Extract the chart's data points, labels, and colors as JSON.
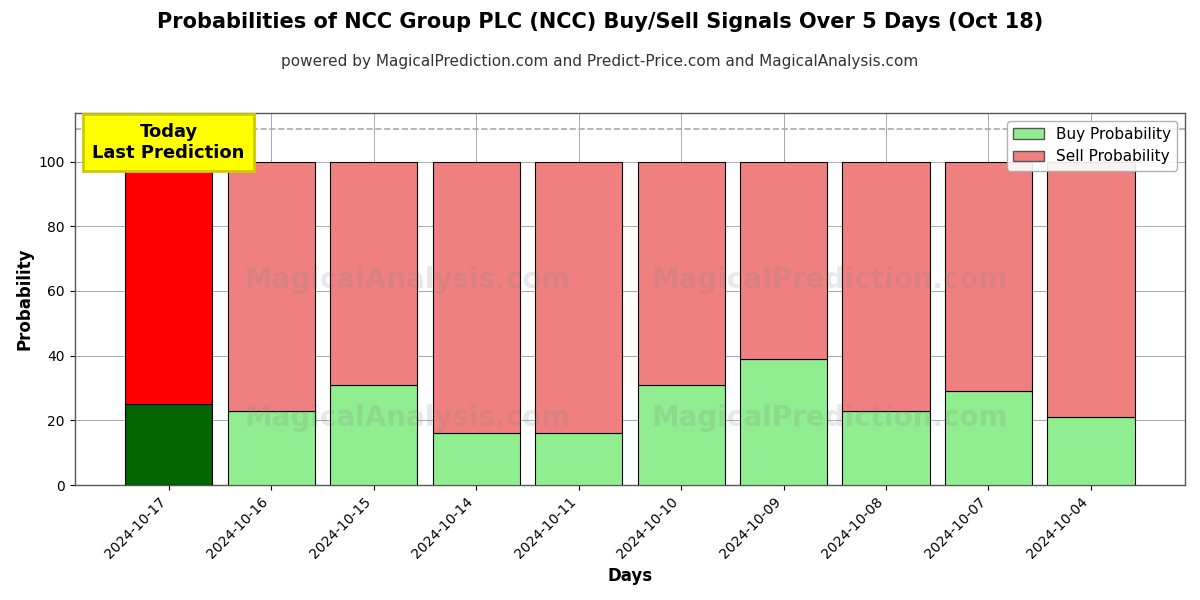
{
  "title": "Probabilities of NCC Group PLC (NCC) Buy/Sell Signals Over 5 Days (Oct 18)",
  "subtitle": "powered by MagicalPrediction.com and Predict-Price.com and MagicalAnalysis.com",
  "xlabel": "Days",
  "ylabel": "Probability",
  "categories": [
    "2024-10-17",
    "2024-10-16",
    "2024-10-15",
    "2024-10-14",
    "2024-10-11",
    "2024-10-10",
    "2024-10-09",
    "2024-10-08",
    "2024-10-07",
    "2024-10-04"
  ],
  "buy_values": [
    25,
    23,
    31,
    16,
    16,
    31,
    39,
    23,
    29,
    21
  ],
  "sell_values": [
    75,
    77,
    69,
    84,
    84,
    69,
    61,
    77,
    71,
    79
  ],
  "today_bar_buy_color": "#006400",
  "today_bar_sell_color": "#ff0000",
  "other_bar_buy_color": "#90EE90",
  "other_bar_sell_color": "#F08080",
  "bar_edge_color": "#000000",
  "legend_buy_color": "#90EE90",
  "legend_sell_color": "#F08080",
  "today_label_text": "Today\nLast Prediction",
  "today_label_bg": "#ffff00",
  "today_label_fontsize": 13,
  "dashed_line_y": 110,
  "ylim": [
    0,
    115
  ],
  "yticks": [
    0,
    20,
    40,
    60,
    80,
    100
  ],
  "grid_color": "#aaaaaa",
  "watermark_alpha": 0.18,
  "background_color": "#ffffff",
  "title_fontsize": 15,
  "subtitle_fontsize": 11,
  "axis_label_fontsize": 12,
  "tick_fontsize": 10,
  "legend_fontsize": 11
}
